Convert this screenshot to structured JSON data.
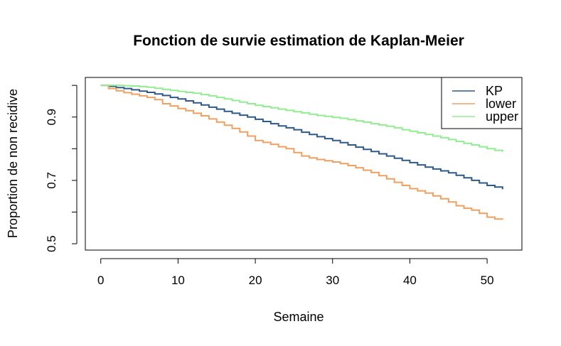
{
  "chart_data": {
    "type": "line",
    "title": "Fonction de survie estimation de Kaplan-Meier",
    "xlabel": "Semaine",
    "ylabel": "Proportion de non recidive",
    "xlim": [
      -2,
      54.5
    ],
    "ylim": [
      0.48,
      1.025
    ],
    "xticks": [
      "0",
      "10",
      "20",
      "30",
      "40",
      "50"
    ],
    "yticks": [
      "0.5",
      "0.7",
      "0.9"
    ],
    "legend_position": "top-right",
    "series": [
      {
        "name": "KP",
        "color": "#2e5a87",
        "x": [
          0,
          1,
          2,
          3,
          4,
          5,
          6,
          7,
          8,
          9,
          10,
          11,
          12,
          13,
          14,
          15,
          16,
          17,
          18,
          19,
          20,
          21,
          22,
          23,
          24,
          25,
          26,
          27,
          28,
          29,
          30,
          31,
          32,
          33,
          34,
          35,
          36,
          37,
          38,
          39,
          40,
          41,
          42,
          43,
          44,
          45,
          46,
          47,
          48,
          49,
          50,
          51,
          52
        ],
        "y": [
          1.0,
          0.997,
          0.993,
          0.99,
          0.986,
          0.982,
          0.978,
          0.973,
          0.968,
          0.962,
          0.957,
          0.951,
          0.945,
          0.938,
          0.931,
          0.925,
          0.918,
          0.912,
          0.906,
          0.9,
          0.893,
          0.886,
          0.879,
          0.872,
          0.866,
          0.86,
          0.852,
          0.845,
          0.838,
          0.832,
          0.826,
          0.819,
          0.812,
          0.805,
          0.798,
          0.791,
          0.784,
          0.777,
          0.77,
          0.763,
          0.756,
          0.749,
          0.742,
          0.736,
          0.73,
          0.724,
          0.716,
          0.708,
          0.7,
          0.692,
          0.684,
          0.679,
          0.672
        ]
      },
      {
        "name": "lower",
        "color": "#f0a060",
        "x": [
          0,
          1,
          2,
          3,
          4,
          5,
          6,
          7,
          8,
          9,
          10,
          11,
          12,
          13,
          14,
          15,
          16,
          17,
          18,
          19,
          20,
          21,
          22,
          23,
          24,
          25,
          26,
          27,
          28,
          29,
          30,
          31,
          32,
          33,
          34,
          35,
          36,
          37,
          38,
          39,
          40,
          41,
          42,
          43,
          44,
          45,
          46,
          47,
          48,
          49,
          50,
          51,
          52
        ],
        "y": [
          1.0,
          0.99,
          0.983,
          0.977,
          0.972,
          0.967,
          0.962,
          0.955,
          0.942,
          0.935,
          0.927,
          0.92,
          0.912,
          0.904,
          0.894,
          0.884,
          0.874,
          0.864,
          0.853,
          0.84,
          0.826,
          0.82,
          0.814,
          0.806,
          0.8,
          0.788,
          0.777,
          0.771,
          0.766,
          0.762,
          0.758,
          0.753,
          0.747,
          0.74,
          0.732,
          0.725,
          0.715,
          0.705,
          0.694,
          0.684,
          0.674,
          0.667,
          0.66,
          0.651,
          0.642,
          0.632,
          0.62,
          0.612,
          0.606,
          0.596,
          0.584,
          0.578,
          0.576
        ]
      },
      {
        "name": "upper",
        "color": "#90ee90",
        "x": [
          0,
          1,
          2,
          3,
          4,
          5,
          6,
          7,
          8,
          9,
          10,
          11,
          12,
          13,
          14,
          15,
          16,
          17,
          18,
          19,
          20,
          21,
          22,
          23,
          24,
          25,
          26,
          27,
          28,
          29,
          30,
          31,
          32,
          33,
          34,
          35,
          36,
          37,
          38,
          39,
          40,
          41,
          42,
          43,
          44,
          45,
          46,
          47,
          48,
          49,
          50,
          51,
          52
        ],
        "y": [
          1.0,
          1.0,
          1.0,
          0.999,
          0.998,
          0.996,
          0.994,
          0.991,
          0.987,
          0.984,
          0.981,
          0.978,
          0.975,
          0.971,
          0.967,
          0.962,
          0.957,
          0.952,
          0.947,
          0.942,
          0.937,
          0.933,
          0.929,
          0.925,
          0.921,
          0.917,
          0.913,
          0.909,
          0.905,
          0.902,
          0.899,
          0.896,
          0.892,
          0.888,
          0.884,
          0.879,
          0.875,
          0.871,
          0.866,
          0.86,
          0.855,
          0.85,
          0.845,
          0.84,
          0.835,
          0.829,
          0.823,
          0.817,
          0.812,
          0.806,
          0.8,
          0.795,
          0.79
        ]
      }
    ]
  }
}
